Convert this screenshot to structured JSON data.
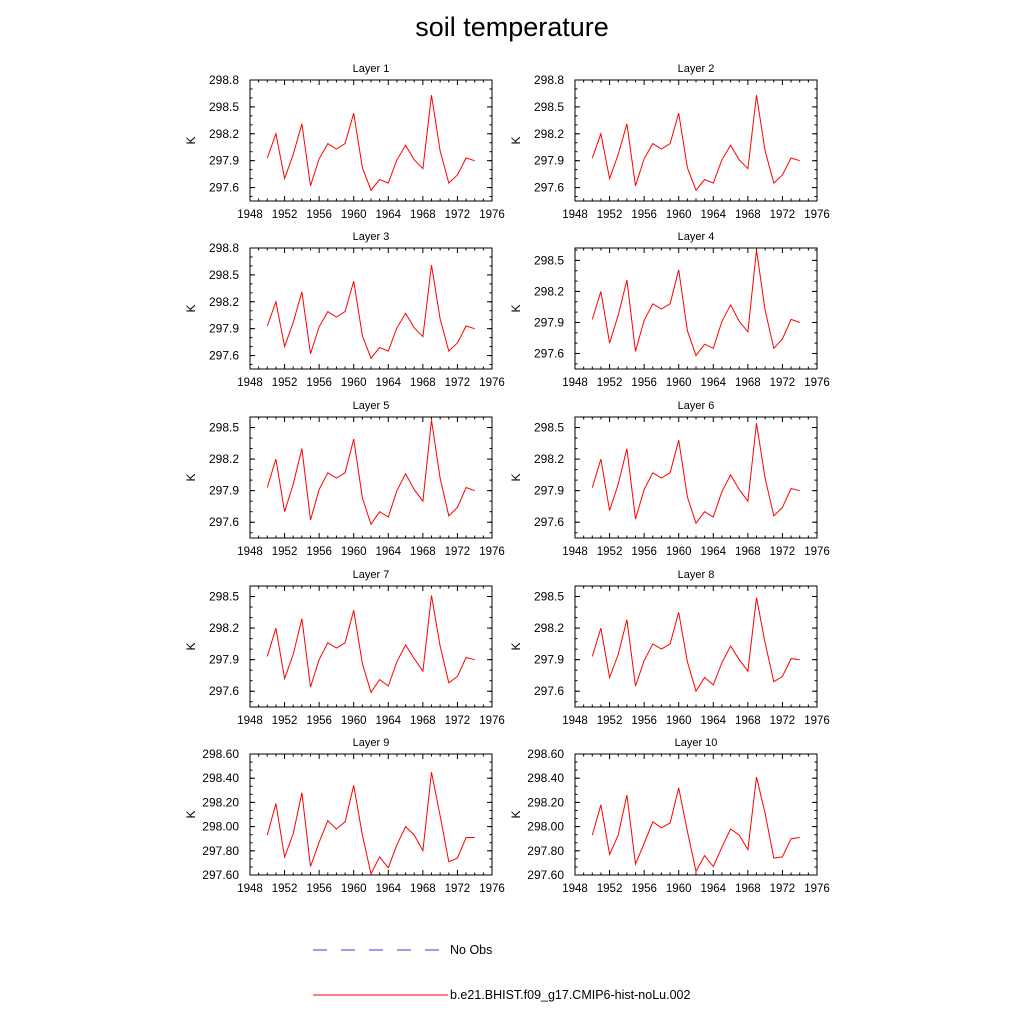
{
  "title": "soil temperature",
  "chart_data": [
    {
      "type": "line",
      "title": "Layer 1",
      "ylabel": "K",
      "xlim": [
        1948,
        1976
      ],
      "ylim": [
        297.45,
        298.8
      ],
      "xticks": [
        1948,
        1952,
        1956,
        1960,
        1964,
        1968,
        1972,
        1976
      ],
      "xticklabels": [
        "1948",
        "1952",
        "1956",
        "1960",
        "1964",
        "1968",
        "1972",
        "1976"
      ],
      "yticks": [
        297.6,
        297.9,
        298.2,
        298.5,
        298.8
      ],
      "yticklabels": [
        "297.6",
        "297.9",
        "298.2",
        "298.5",
        "298.8"
      ],
      "x": [
        1950,
        1951,
        1952,
        1953,
        1954,
        1955,
        1956,
        1957,
        1958,
        1959,
        1960,
        1961,
        1962,
        1963,
        1964,
        1965,
        1966,
        1967,
        1968,
        1969,
        1970,
        1971,
        1972,
        1973,
        1974
      ],
      "series": [
        {
          "color": "#ff0000",
          "values": [
            297.93,
            298.2,
            297.7,
            297.97,
            298.31,
            297.62,
            297.92,
            298.09,
            298.03,
            298.09,
            298.43,
            297.82,
            297.57,
            297.69,
            297.65,
            297.91,
            298.07,
            297.91,
            297.81,
            298.63,
            298.01,
            297.65,
            297.74,
            297.93,
            297.9
          ]
        }
      ]
    },
    {
      "type": "line",
      "title": "Layer 2",
      "ylabel": "K",
      "xlim": [
        1948,
        1976
      ],
      "ylim": [
        297.45,
        298.8
      ],
      "xticks": [
        1948,
        1952,
        1956,
        1960,
        1964,
        1968,
        1972,
        1976
      ],
      "xticklabels": [
        "1948",
        "1952",
        "1956",
        "1960",
        "1964",
        "1968",
        "1972",
        "1976"
      ],
      "yticks": [
        297.6,
        297.9,
        298.2,
        298.5,
        298.8
      ],
      "yticklabels": [
        "297.6",
        "297.9",
        "298.2",
        "298.5",
        "298.8"
      ],
      "x": [
        1950,
        1951,
        1952,
        1953,
        1954,
        1955,
        1956,
        1957,
        1958,
        1959,
        1960,
        1961,
        1962,
        1963,
        1964,
        1965,
        1966,
        1967,
        1968,
        1969,
        1970,
        1971,
        1972,
        1973,
        1974
      ],
      "series": [
        {
          "color": "#ff0000",
          "values": [
            297.93,
            298.2,
            297.7,
            297.97,
            298.31,
            297.62,
            297.92,
            298.09,
            298.03,
            298.09,
            298.43,
            297.82,
            297.57,
            297.69,
            297.65,
            297.91,
            298.07,
            297.91,
            297.81,
            298.63,
            298.01,
            297.65,
            297.74,
            297.93,
            297.9
          ]
        }
      ]
    },
    {
      "type": "line",
      "title": "Layer 3",
      "ylabel": "K",
      "xlim": [
        1948,
        1976
      ],
      "ylim": [
        297.45,
        298.8
      ],
      "xticks": [
        1948,
        1952,
        1956,
        1960,
        1964,
        1968,
        1972,
        1976
      ],
      "xticklabels": [
        "1948",
        "1952",
        "1956",
        "1960",
        "1964",
        "1968",
        "1972",
        "1976"
      ],
      "yticks": [
        297.6,
        297.9,
        298.2,
        298.5,
        298.8
      ],
      "yticklabels": [
        "297.6",
        "297.9",
        "298.2",
        "298.5",
        "298.8"
      ],
      "x": [
        1950,
        1951,
        1952,
        1953,
        1954,
        1955,
        1956,
        1957,
        1958,
        1959,
        1960,
        1961,
        1962,
        1963,
        1964,
        1965,
        1966,
        1967,
        1968,
        1969,
        1970,
        1971,
        1972,
        1973,
        1974
      ],
      "series": [
        {
          "color": "#ff0000",
          "values": [
            297.93,
            298.2,
            297.7,
            297.97,
            298.31,
            297.62,
            297.92,
            298.09,
            298.03,
            298.09,
            298.43,
            297.82,
            297.57,
            297.69,
            297.65,
            297.91,
            298.07,
            297.91,
            297.81,
            298.61,
            298.01,
            297.65,
            297.74,
            297.93,
            297.9
          ]
        }
      ]
    },
    {
      "type": "line",
      "title": "Layer 4",
      "ylabel": "K",
      "xlim": [
        1948,
        1976
      ],
      "ylim": [
        297.45,
        298.62
      ],
      "xticks": [
        1948,
        1952,
        1956,
        1960,
        1964,
        1968,
        1972,
        1976
      ],
      "xticklabels": [
        "1948",
        "1952",
        "1956",
        "1960",
        "1964",
        "1968",
        "1972",
        "1976"
      ],
      "yticks": [
        297.6,
        297.9,
        298.2,
        298.5
      ],
      "yticklabels": [
        "297.6",
        "297.9",
        "298.2",
        "298.5"
      ],
      "x": [
        1950,
        1951,
        1952,
        1953,
        1954,
        1955,
        1956,
        1957,
        1958,
        1959,
        1960,
        1961,
        1962,
        1963,
        1964,
        1965,
        1966,
        1967,
        1968,
        1969,
        1970,
        1971,
        1972,
        1973,
        1974
      ],
      "series": [
        {
          "color": "#ff0000",
          "values": [
            297.93,
            298.2,
            297.7,
            297.97,
            298.31,
            297.62,
            297.92,
            298.08,
            298.03,
            298.08,
            298.41,
            297.82,
            297.58,
            297.69,
            297.65,
            297.91,
            298.07,
            297.91,
            297.81,
            298.6,
            298.02,
            297.65,
            297.74,
            297.93,
            297.9
          ]
        }
      ]
    },
    {
      "type": "line",
      "title": "Layer 5",
      "ylabel": "K",
      "xlim": [
        1948,
        1976
      ],
      "ylim": [
        297.45,
        298.6
      ],
      "xticks": [
        1948,
        1952,
        1956,
        1960,
        1964,
        1968,
        1972,
        1976
      ],
      "xticklabels": [
        "1948",
        "1952",
        "1956",
        "1960",
        "1964",
        "1968",
        "1972",
        "1976"
      ],
      "yticks": [
        297.6,
        297.9,
        298.2,
        298.5
      ],
      "yticklabels": [
        "297.6",
        "297.9",
        "298.2",
        "298.5"
      ],
      "x": [
        1950,
        1951,
        1952,
        1953,
        1954,
        1955,
        1956,
        1957,
        1958,
        1959,
        1960,
        1961,
        1962,
        1963,
        1964,
        1965,
        1966,
        1967,
        1968,
        1969,
        1970,
        1971,
        1972,
        1973,
        1974
      ],
      "series": [
        {
          "color": "#ff0000",
          "values": [
            297.93,
            298.2,
            297.7,
            297.96,
            298.3,
            297.62,
            297.91,
            298.07,
            298.02,
            298.07,
            298.39,
            297.83,
            297.58,
            297.7,
            297.65,
            297.9,
            298.06,
            297.91,
            297.8,
            298.57,
            298.02,
            297.66,
            297.74,
            297.93,
            297.9
          ]
        }
      ]
    },
    {
      "type": "line",
      "title": "Layer 6",
      "ylabel": "K",
      "xlim": [
        1948,
        1976
      ],
      "ylim": [
        297.45,
        298.6
      ],
      "xticks": [
        1948,
        1952,
        1956,
        1960,
        1964,
        1968,
        1972,
        1976
      ],
      "xticklabels": [
        "1948",
        "1952",
        "1956",
        "1960",
        "1964",
        "1968",
        "1972",
        "1976"
      ],
      "yticks": [
        297.6,
        297.9,
        298.2,
        298.5
      ],
      "yticklabels": [
        "297.6",
        "297.9",
        "298.2",
        "298.5"
      ],
      "x": [
        1950,
        1951,
        1952,
        1953,
        1954,
        1955,
        1956,
        1957,
        1958,
        1959,
        1960,
        1961,
        1962,
        1963,
        1964,
        1965,
        1966,
        1967,
        1968,
        1969,
        1970,
        1971,
        1972,
        1973,
        1974
      ],
      "series": [
        {
          "color": "#ff0000",
          "values": [
            297.93,
            298.2,
            297.71,
            297.96,
            298.3,
            297.63,
            297.91,
            298.07,
            298.02,
            298.07,
            298.38,
            297.84,
            297.59,
            297.7,
            297.65,
            297.89,
            298.05,
            297.91,
            297.8,
            298.54,
            298.02,
            297.66,
            297.74,
            297.92,
            297.9
          ]
        }
      ]
    },
    {
      "type": "line",
      "title": "Layer 7",
      "ylabel": "K",
      "xlim": [
        1948,
        1976
      ],
      "ylim": [
        297.45,
        298.6
      ],
      "xticks": [
        1948,
        1952,
        1956,
        1960,
        1964,
        1968,
        1972,
        1976
      ],
      "xticklabels": [
        "1948",
        "1952",
        "1956",
        "1960",
        "1964",
        "1968",
        "1972",
        "1976"
      ],
      "yticks": [
        297.6,
        297.9,
        298.2,
        298.5
      ],
      "yticklabels": [
        "297.6",
        "297.9",
        "298.2",
        "298.5"
      ],
      "x": [
        1950,
        1951,
        1952,
        1953,
        1954,
        1955,
        1956,
        1957,
        1958,
        1959,
        1960,
        1961,
        1962,
        1963,
        1964,
        1965,
        1966,
        1967,
        1968,
        1969,
        1970,
        1971,
        1972,
        1973,
        1974
      ],
      "series": [
        {
          "color": "#ff0000",
          "values": [
            297.93,
            298.2,
            297.72,
            297.95,
            298.29,
            297.64,
            297.9,
            298.06,
            298.01,
            298.06,
            298.37,
            297.86,
            297.59,
            297.71,
            297.65,
            297.88,
            298.04,
            297.91,
            297.79,
            298.51,
            298.03,
            297.68,
            297.74,
            297.92,
            297.9
          ]
        }
      ]
    },
    {
      "type": "line",
      "title": "Layer 8",
      "ylabel": "K",
      "xlim": [
        1948,
        1976
      ],
      "ylim": [
        297.45,
        298.6
      ],
      "xticks": [
        1948,
        1952,
        1956,
        1960,
        1964,
        1968,
        1972,
        1976
      ],
      "xticklabels": [
        "1948",
        "1952",
        "1956",
        "1960",
        "1964",
        "1968",
        "1972",
        "1976"
      ],
      "yticks": [
        297.6,
        297.9,
        298.2,
        298.5
      ],
      "yticklabels": [
        "297.6",
        "297.9",
        "298.2",
        "298.5"
      ],
      "x": [
        1950,
        1951,
        1952,
        1953,
        1954,
        1955,
        1956,
        1957,
        1958,
        1959,
        1960,
        1961,
        1962,
        1963,
        1964,
        1965,
        1966,
        1967,
        1968,
        1969,
        1970,
        1971,
        1972,
        1973,
        1974
      ],
      "series": [
        {
          "color": "#ff0000",
          "values": [
            297.93,
            298.2,
            297.73,
            297.95,
            298.28,
            297.65,
            297.89,
            298.05,
            298.0,
            298.05,
            298.35,
            297.88,
            297.6,
            297.73,
            297.66,
            297.87,
            298.03,
            297.9,
            297.79,
            298.49,
            298.06,
            297.69,
            297.74,
            297.91,
            297.9
          ]
        }
      ]
    },
    {
      "type": "line",
      "title": "Layer 9",
      "ylabel": "K",
      "xlim": [
        1948,
        1976
      ],
      "ylim": [
        297.6,
        298.6
      ],
      "xticks": [
        1948,
        1952,
        1956,
        1960,
        1964,
        1968,
        1972,
        1976
      ],
      "xticklabels": [
        "1948",
        "1952",
        "1956",
        "1960",
        "1964",
        "1968",
        "1972",
        "1976"
      ],
      "yticks": [
        297.6,
        297.8,
        298.0,
        298.2,
        298.4,
        298.6
      ],
      "yticklabels": [
        "297.60",
        "297.80",
        "298.00",
        "298.20",
        "298.40",
        "298.60"
      ],
      "x": [
        1950,
        1951,
        1952,
        1953,
        1954,
        1955,
        1956,
        1957,
        1958,
        1959,
        1960,
        1961,
        1962,
        1963,
        1964,
        1965,
        1966,
        1967,
        1968,
        1969,
        1970,
        1971,
        1972,
        1973,
        1974
      ],
      "series": [
        {
          "color": "#ff0000",
          "values": [
            297.93,
            298.19,
            297.75,
            297.94,
            298.28,
            297.67,
            297.87,
            298.05,
            297.98,
            298.04,
            298.34,
            297.93,
            297.61,
            297.75,
            297.66,
            297.85,
            298.0,
            297.93,
            297.8,
            298.45,
            298.09,
            297.71,
            297.74,
            297.91,
            297.91
          ]
        }
      ]
    },
    {
      "type": "line",
      "title": "Layer 10",
      "ylabel": "K",
      "xlim": [
        1948,
        1976
      ],
      "ylim": [
        297.6,
        298.6
      ],
      "xticks": [
        1948,
        1952,
        1956,
        1960,
        1964,
        1968,
        1972,
        1976
      ],
      "xticklabels": [
        "1948",
        "1952",
        "1956",
        "1960",
        "1964",
        "1968",
        "1972",
        "1976"
      ],
      "yticks": [
        297.6,
        297.8,
        298.0,
        298.2,
        298.4,
        298.6
      ],
      "yticklabels": [
        "297.60",
        "297.80",
        "298.00",
        "298.20",
        "298.40",
        "298.60"
      ],
      "x": [
        1950,
        1951,
        1952,
        1953,
        1954,
        1955,
        1956,
        1957,
        1958,
        1959,
        1960,
        1961,
        1962,
        1963,
        1964,
        1965,
        1966,
        1967,
        1968,
        1969,
        1970,
        1971,
        1972,
        1973,
        1974
      ],
      "series": [
        {
          "color": "#ff0000",
          "values": [
            297.93,
            298.18,
            297.77,
            297.93,
            298.26,
            297.69,
            297.86,
            298.04,
            297.99,
            298.03,
            298.32,
            297.96,
            297.63,
            297.76,
            297.67,
            297.83,
            297.98,
            297.93,
            297.81,
            298.41,
            298.11,
            297.74,
            297.75,
            297.9,
            297.91
          ]
        }
      ]
    }
  ],
  "legend": [
    {
      "label": "No Obs",
      "color": "#3b3bd6",
      "style": "dashed"
    },
    {
      "label": "b.e21.BHIST.f09_g17.CMIP6-hist-noLu.002",
      "color": "#ff0000",
      "style": "solid"
    }
  ]
}
